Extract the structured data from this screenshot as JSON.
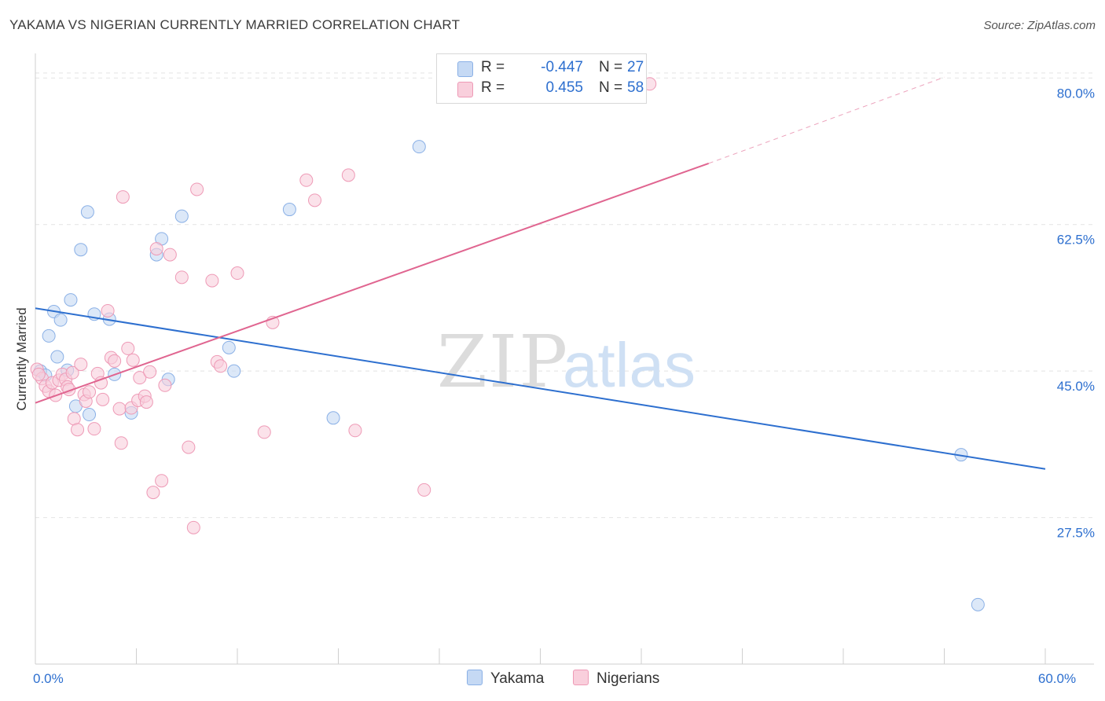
{
  "header": {
    "title": "YAKAMA VS NIGERIAN CURRENTLY MARRIED CORRELATION CHART",
    "source": "Source: ZipAtlas.com"
  },
  "watermark": {
    "zip": "ZIP",
    "atlas": "atlas"
  },
  "colors": {
    "yakama_fill": "#c5d9f4",
    "yakama_stroke": "#8ab0e6",
    "yakama_line": "#2d6fcf",
    "nigerian_fill": "#f9cfdc",
    "nigerian_stroke": "#ee9ab6",
    "nigerian_line": "#e06590",
    "axis_label": "#2d6fcf",
    "grid": "#e4e4e4"
  },
  "legend": {
    "rows": [
      {
        "r_label": "R =",
        "r_value": "-0.447",
        "n_label": "N =",
        "n_value": "27",
        "color_key": "yakama"
      },
      {
        "r_label": "R =",
        "r_value": "0.455",
        "n_label": "N =",
        "n_value": "58",
        "color_key": "nigerian"
      }
    ],
    "bottom": [
      {
        "label": "Yakama",
        "color_key": "yakama"
      },
      {
        "label": "Nigerians",
        "color_key": "nigerian"
      }
    ]
  },
  "chart_data": {
    "type": "scatter",
    "title": "YAKAMA VS NIGERIAN CURRENTLY MARRIED CORRELATION CHART",
    "xlabel": "",
    "ylabel": "Currently Married",
    "xlim": [
      0,
      60
    ],
    "ylim": [
      10,
      82
    ],
    "x_tick_labels": [
      {
        "value": 0,
        "label": "0.0%"
      },
      {
        "value": 60,
        "label": "60.0%"
      }
    ],
    "x_minor_ticks": [
      0,
      6,
      12,
      18,
      24,
      30,
      36,
      42,
      48,
      54,
      60
    ],
    "y_tick_labels": [
      {
        "value": 80,
        "label": "80.0%"
      },
      {
        "value": 62.5,
        "label": "62.5%"
      },
      {
        "value": 45,
        "label": "45.0%"
      },
      {
        "value": 27.5,
        "label": "27.5%"
      }
    ],
    "grid": true,
    "series": [
      {
        "name": "Yakama",
        "color_key": "yakama",
        "points": [
          [
            0.3,
            45.0
          ],
          [
            0.6,
            44.5
          ],
          [
            0.8,
            49.2
          ],
          [
            1.1,
            52.1
          ],
          [
            1.3,
            46.7
          ],
          [
            1.5,
            51.1
          ],
          [
            1.9,
            45.1
          ],
          [
            2.1,
            53.5
          ],
          [
            2.4,
            40.8
          ],
          [
            2.7,
            59.5
          ],
          [
            3.1,
            64.0
          ],
          [
            3.2,
            39.8
          ],
          [
            3.5,
            51.8
          ],
          [
            4.4,
            51.2
          ],
          [
            4.7,
            44.6
          ],
          [
            5.7,
            40.0
          ],
          [
            7.2,
            58.9
          ],
          [
            7.5,
            60.8
          ],
          [
            7.9,
            44.0
          ],
          [
            8.7,
            63.5
          ],
          [
            11.5,
            47.8
          ],
          [
            11.8,
            45.0
          ],
          [
            15.1,
            64.3
          ],
          [
            17.7,
            39.4
          ],
          [
            22.8,
            71.8
          ],
          [
            55.0,
            35.0
          ],
          [
            56.0,
            17.1
          ]
        ],
        "trend": {
          "x0": 0,
          "y0": 52.5,
          "x1": 60,
          "y1": 33.3
        }
      },
      {
        "name": "Nigerians",
        "color_key": "nigerian",
        "points": [
          [
            0.1,
            45.2
          ],
          [
            0.4,
            44.1
          ],
          [
            0.6,
            43.2
          ],
          [
            0.8,
            42.6
          ],
          [
            1.0,
            43.6
          ],
          [
            1.2,
            42.1
          ],
          [
            1.4,
            43.9
          ],
          [
            1.6,
            44.6
          ],
          [
            1.8,
            44.0
          ],
          [
            1.9,
            43.1
          ],
          [
            2.0,
            42.8
          ],
          [
            2.2,
            44.8
          ],
          [
            2.3,
            39.3
          ],
          [
            2.5,
            38.0
          ],
          [
            2.7,
            45.8
          ],
          [
            2.9,
            42.2
          ],
          [
            3.0,
            41.4
          ],
          [
            3.2,
            42.5
          ],
          [
            3.5,
            38.1
          ],
          [
            3.7,
            44.7
          ],
          [
            3.9,
            43.6
          ],
          [
            4.0,
            41.6
          ],
          [
            4.3,
            52.2
          ],
          [
            4.5,
            46.6
          ],
          [
            4.7,
            46.2
          ],
          [
            5.0,
            40.5
          ],
          [
            5.1,
            36.4
          ],
          [
            5.2,
            65.8
          ],
          [
            5.5,
            47.7
          ],
          [
            5.7,
            40.6
          ],
          [
            5.8,
            46.3
          ],
          [
            6.1,
            41.5
          ],
          [
            6.2,
            44.2
          ],
          [
            6.5,
            42.0
          ],
          [
            6.6,
            41.3
          ],
          [
            6.8,
            44.9
          ],
          [
            7.0,
            30.5
          ],
          [
            7.2,
            59.6
          ],
          [
            7.5,
            31.9
          ],
          [
            7.7,
            43.3
          ],
          [
            8.0,
            58.9
          ],
          [
            8.7,
            56.2
          ],
          [
            9.1,
            35.9
          ],
          [
            9.4,
            26.3
          ],
          [
            9.6,
            66.7
          ],
          [
            10.5,
            55.8
          ],
          [
            10.8,
            46.1
          ],
          [
            11.0,
            45.6
          ],
          [
            12.0,
            56.7
          ],
          [
            13.6,
            37.7
          ],
          [
            14.1,
            50.8
          ],
          [
            16.1,
            67.8
          ],
          [
            16.6,
            65.4
          ],
          [
            18.6,
            68.4
          ],
          [
            19.0,
            37.9
          ],
          [
            23.1,
            30.8
          ],
          [
            36.5,
            79.3
          ],
          [
            0.2,
            44.6
          ]
        ],
        "trend": {
          "x0": 0,
          "y0": 41.2,
          "x1": 40,
          "y1": 69.8
        },
        "trend_extension": {
          "x0": 40,
          "y0": 69.8,
          "x1": 54,
          "y1": 80.1
        }
      }
    ]
  }
}
